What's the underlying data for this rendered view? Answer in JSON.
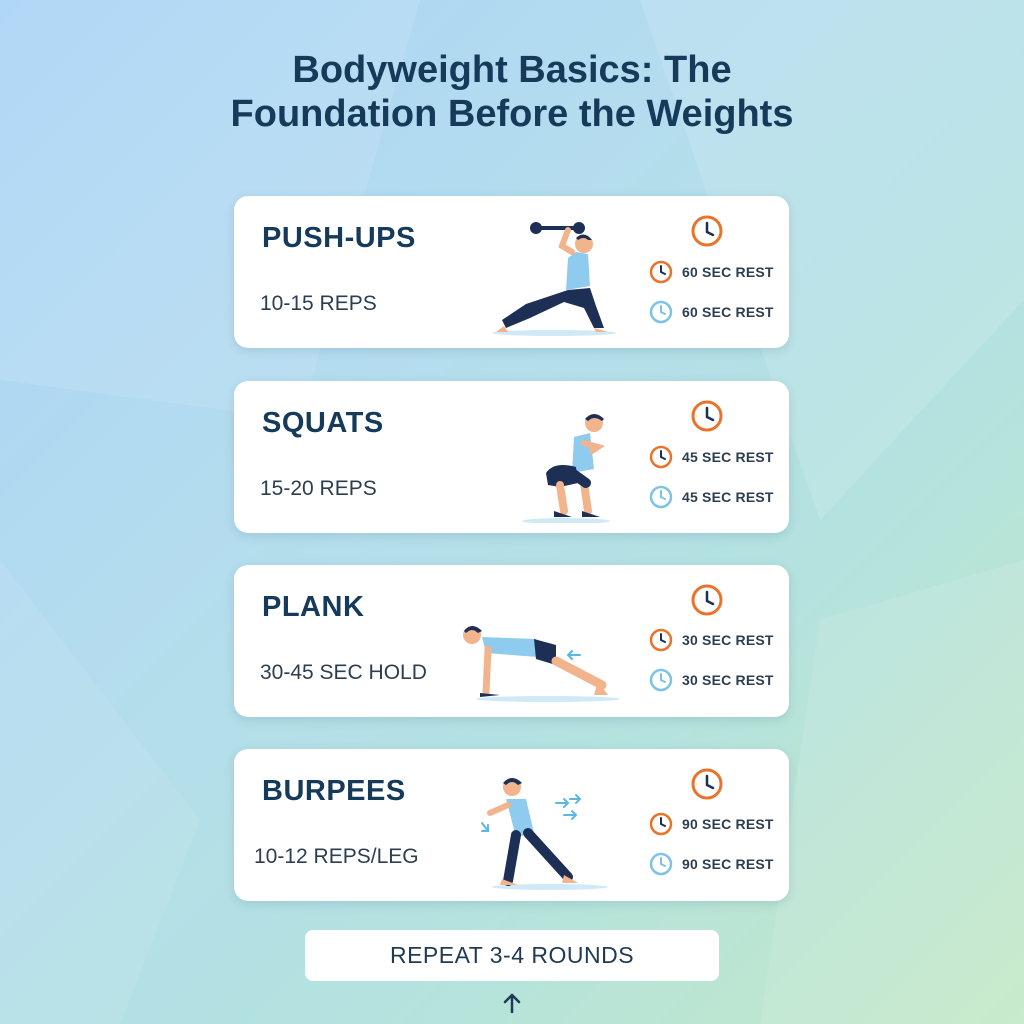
{
  "title": {
    "line1": "Bodyweight Basics: The",
    "line2": "Foundation Before the Weights"
  },
  "colors": {
    "title": "#163a5a",
    "orange_clock": "#e8742c",
    "blue_clock": "#7cc3e6",
    "shirt": "#8fcbee",
    "pants": "#1d2f55"
  },
  "exercises": [
    {
      "name": "PUSH-UPS",
      "reps": "10-15 REPS",
      "rest_primary": "60 SEC REST",
      "rest_secondary": "60 SEC REST",
      "figure": "lunge-figure"
    },
    {
      "name": "SQUATS",
      "reps": "15-20 REPS",
      "rest_primary": "45 SEC REST",
      "rest_secondary": "45 SEC REST",
      "figure": "squat-figure"
    },
    {
      "name": "PLANK",
      "reps": "30-45 SEC HOLD",
      "rest_primary": "30 SEC REST",
      "rest_secondary": "30 SEC REST",
      "figure": "plank-figure"
    },
    {
      "name": "BURPEES",
      "reps": "10-12 REPS/LEG",
      "rest_primary": "90 SEC REST",
      "rest_secondary": "90 SEC REST",
      "figure": "burpee-figure"
    }
  ],
  "footer": {
    "repeat_label": "REPEAT 3-4 ROUNDS",
    "arrow_icon": "arrow-up-icon"
  }
}
